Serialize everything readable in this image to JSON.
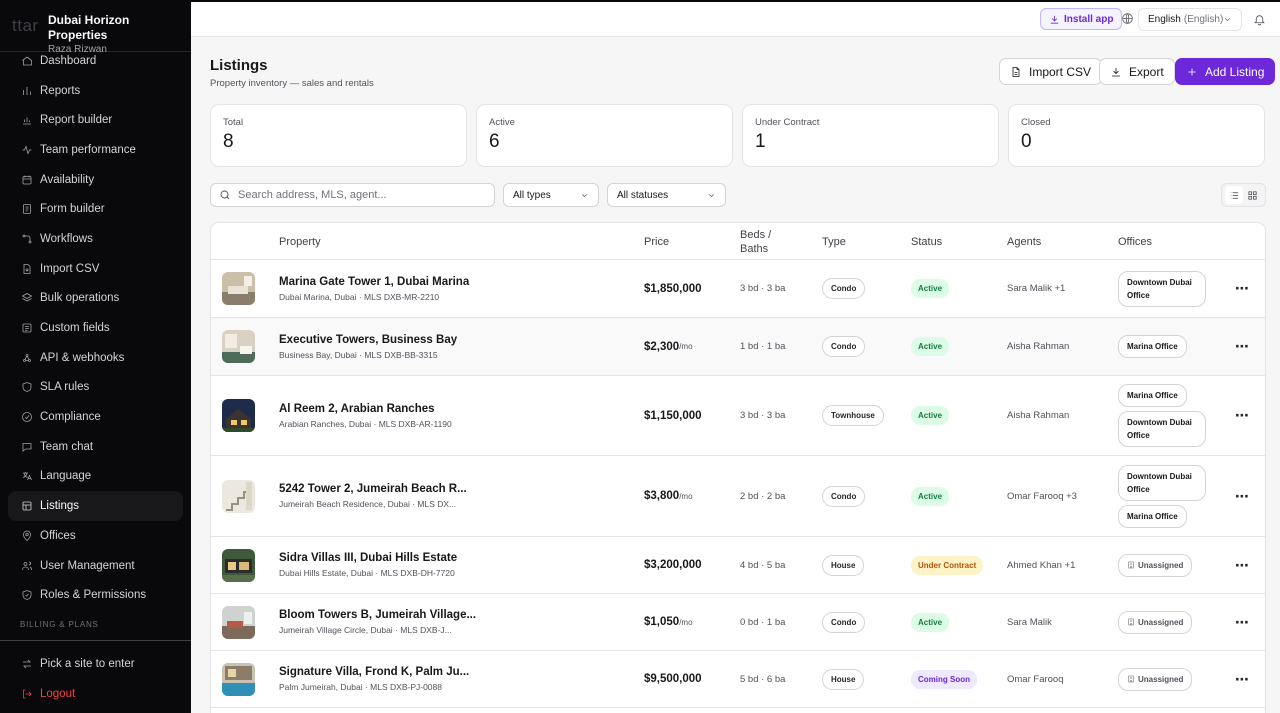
{
  "brand": {
    "logo": "ttar",
    "name": "Dubai Horizon Properties",
    "user": "Raza Rizwan"
  },
  "sidebar": {
    "items": [
      {
        "label": "Dashboard",
        "icon": "home-icon"
      },
      {
        "label": "Reports",
        "icon": "bar-chart-icon"
      },
      {
        "label": "Report builder",
        "icon": "chart-builder-icon"
      },
      {
        "label": "Team performance",
        "icon": "activity-icon"
      },
      {
        "label": "Availability",
        "icon": "calendar-icon"
      },
      {
        "label": "Form builder",
        "icon": "form-icon"
      },
      {
        "label": "Workflows",
        "icon": "workflow-icon"
      },
      {
        "label": "Import CSV",
        "icon": "file-import-icon"
      },
      {
        "label": "Bulk operations",
        "icon": "layers-icon"
      },
      {
        "label": "Custom fields",
        "icon": "fields-icon"
      },
      {
        "label": "API & webhooks",
        "icon": "webhook-icon"
      },
      {
        "label": "SLA rules",
        "icon": "shield-icon"
      },
      {
        "label": "Compliance",
        "icon": "compliance-icon"
      },
      {
        "label": "Team chat",
        "icon": "chat-icon"
      },
      {
        "label": "Language",
        "icon": "language-icon"
      },
      {
        "label": "Listings",
        "icon": "listings-icon",
        "active": true
      },
      {
        "label": "Offices",
        "icon": "map-pin-icon"
      },
      {
        "label": "User Management",
        "icon": "users-icon"
      },
      {
        "label": "Roles & Permissions",
        "icon": "shield-check-icon"
      }
    ],
    "section_label": "BILLING & PLANS",
    "pick_site": "Pick a site to enter",
    "logout": "Logout"
  },
  "topbar": {
    "install_label": "Install app",
    "language_label": "English",
    "language_native": "(English)"
  },
  "header": {
    "title": "Listings",
    "subtitle": "Property inventory — sales and rentals",
    "import_label": "Import CSV",
    "export_label": "Export",
    "add_label": "Add Listing"
  },
  "stats": [
    {
      "label": "Total",
      "value": "8"
    },
    {
      "label": "Active",
      "value": "6"
    },
    {
      "label": "Under Contract",
      "value": "1"
    },
    {
      "label": "Closed",
      "value": "0"
    }
  ],
  "filters": {
    "search_placeholder": "Search address, MLS, agent...",
    "type_value": "All types",
    "status_value": "All statuses"
  },
  "table": {
    "columns": {
      "property": "Property",
      "price": "Price",
      "beds_baths": "Beds / Baths",
      "type": "Type",
      "status": "Status",
      "agents": "Agents",
      "offices": "Offices"
    },
    "rows": [
      {
        "title": "Marina Gate Tower 1, Dubai Marina",
        "sub": "Dubai Marina, Dubai · MLS DXB-MR-2210",
        "price": "$1,850,000",
        "per": "",
        "beds": "3 bd · 3 ba",
        "type": "Condo",
        "status": "Active",
        "status_color": "active",
        "agents": "Sara Malik +1",
        "offices": [
          "Downtown Dubai Office"
        ],
        "thumb": "living"
      },
      {
        "title": "Executive Towers, Business Bay",
        "sub": "Business Bay, Dubai · MLS DXB-BB-3315",
        "price": "$2,300",
        "per": "/mo",
        "beds": "1 bd · 1 ba",
        "type": "Condo",
        "status": "Active",
        "status_color": "active",
        "agents": "Aisha Rahman",
        "offices": [
          "Marina Office"
        ],
        "thumb": "room"
      },
      {
        "title": "Al Reem 2, Arabian Ranches",
        "sub": "Arabian Ranches, Dubai · MLS DXB-AR-1190",
        "price": "$1,150,000",
        "per": "",
        "beds": "3 bd · 3 ba",
        "type": "Townhouse",
        "status": "Active",
        "status_color": "active",
        "agents": "Aisha Rahman",
        "offices": [
          "Marina Office",
          "Downtown Dubai Office"
        ],
        "thumb": "night-house"
      },
      {
        "title": "5242 Tower 2, Jumeirah Beach R...",
        "sub": "Jumeirah Beach Residence, Dubai · MLS DX...",
        "price": "$3,800",
        "per": "/mo",
        "beds": "2 bd · 2 ba",
        "type": "Condo",
        "status": "Active",
        "status_color": "active",
        "agents": "Omar Farooq +3",
        "offices": [
          "Downtown Dubai Office",
          "Marina Office"
        ],
        "thumb": "stairs"
      },
      {
        "title": "Sidra Villas III, Dubai Hills Estate",
        "sub": "Dubai Hills Estate, Dubai · MLS DXB-DH-7720",
        "price": "$3,200,000",
        "per": "",
        "beds": "4 bd · 5 ba",
        "type": "House",
        "status": "Under Contract",
        "status_color": "contract",
        "agents": "Ahmed Khan +1",
        "offices": [
          "Unassigned"
        ],
        "thumb": "villa"
      },
      {
        "title": "Bloom Towers B, Jumeirah Village...",
        "sub": "Jumeirah Village Circle, Dubai · MLS DXB-J...",
        "price": "$1,050",
        "per": "/mo",
        "beds": "0 bd · 1 ba",
        "type": "Condo",
        "status": "Active",
        "status_color": "active",
        "agents": "Sara Malik",
        "offices": [
          "Unassigned"
        ],
        "thumb": "lounge"
      },
      {
        "title": "Signature Villa, Frond K, Palm Ju...",
        "sub": "Palm Jumeirah, Dubai · MLS DXB-PJ-0088",
        "price": "$9,500,000",
        "per": "",
        "beds": "5 bd · 6 ba",
        "type": "House",
        "status": "Coming Soon",
        "status_color": "soon",
        "agents": "Omar Farooq",
        "offices": [
          "Unassigned"
        ],
        "thumb": "pool"
      }
    ]
  },
  "colors": {
    "accent": "#6d28d9",
    "status_active_bg": "#dcfce7",
    "status_active_fg": "#15803d",
    "status_contract_bg": "#fef3c7",
    "status_contract_fg": "#b45309",
    "status_soon_bg": "#ede9fe",
    "status_soon_fg": "#6d28d9"
  }
}
